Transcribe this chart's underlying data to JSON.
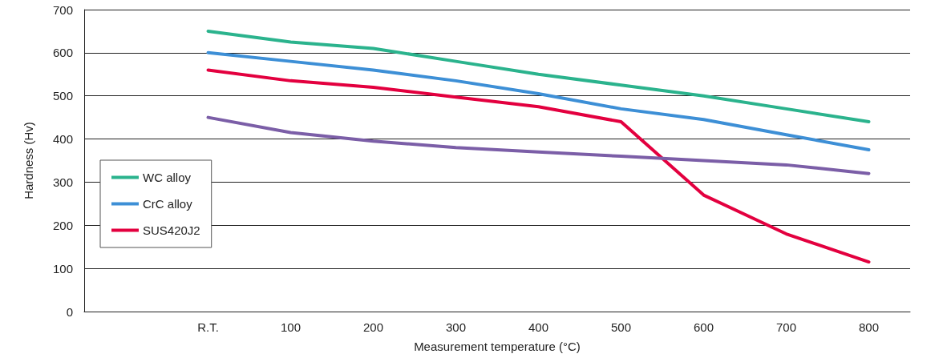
{
  "chart_data": {
    "type": "line",
    "xlabel": "Measurement temperature (°C)",
    "ylabel": "Hardness (Hv)",
    "categories": [
      null,
      "R.T.",
      "100",
      "200",
      "300",
      "400",
      "500",
      "600",
      "700",
      "800"
    ],
    "series": [
      {
        "name": "WC alloy",
        "color": "#2bb38d",
        "values": [
          null,
          650,
          625,
          610,
          580,
          550,
          525,
          500,
          470,
          440
        ]
      },
      {
        "name": "CrC alloy",
        "color": "#3d8fd6",
        "values": [
          null,
          600,
          580,
          560,
          535,
          505,
          470,
          445,
          410,
          375
        ]
      },
      {
        "name": "SUS420J2",
        "color": "#e3003f",
        "values": [
          null,
          560,
          535,
          520,
          497,
          475,
          440,
          270,
          180,
          115
        ]
      },
      {
        "color": "#7b5ea7",
        "values": [
          null,
          450,
          415,
          395,
          380,
          370,
          360,
          350,
          340,
          320
        ]
      }
    ],
    "ylim": [
      0,
      700
    ],
    "yticks": [
      0,
      100,
      200,
      300,
      400,
      500,
      600,
      700
    ],
    "grid": "y",
    "legend": "left",
    "marker": "none",
    "line_style": "solid"
  }
}
